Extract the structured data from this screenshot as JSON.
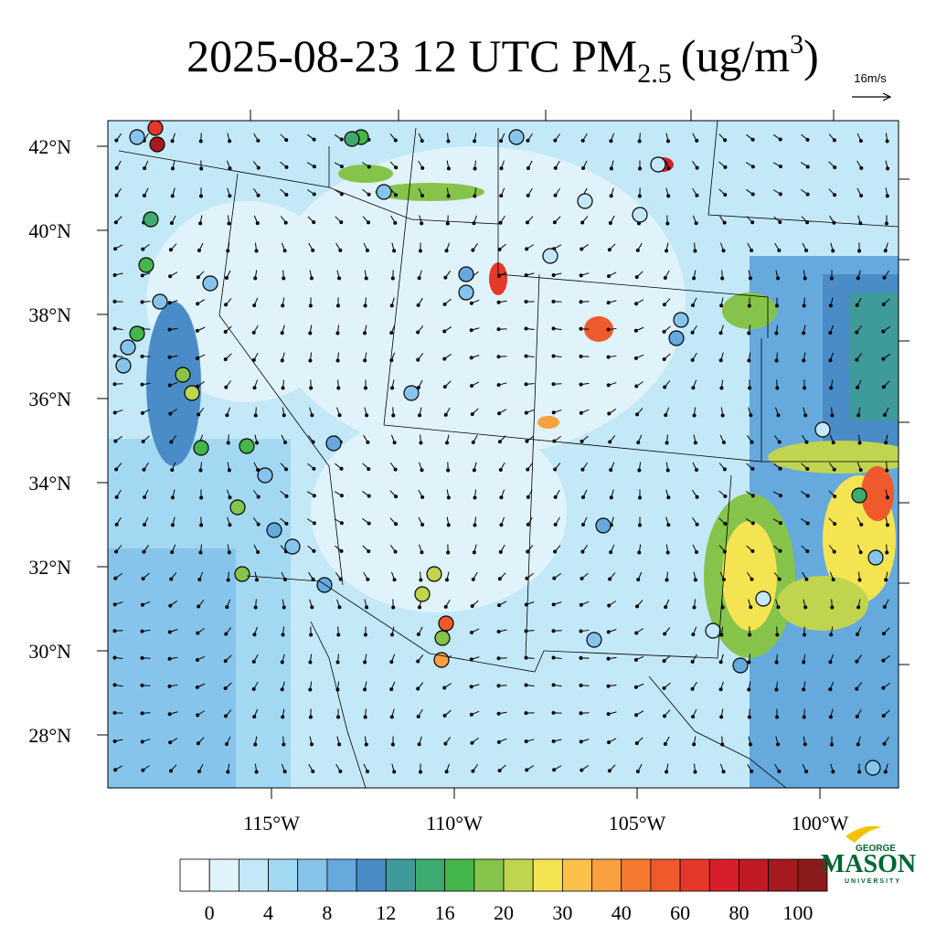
{
  "title": {
    "main": "2025-08-23 12 UTC PM",
    "sub": "2.5",
    "unit_open": "(ug/m",
    "sup": "3",
    "unit_close": ")"
  },
  "wind_reference": "16m/s",
  "latitude_labels": [
    "42°N",
    "40°N",
    "38°N",
    "36°N",
    "34°N",
    "32°N",
    "30°N",
    "28°N"
  ],
  "longitude_labels": [
    "115°W",
    "110°W",
    "105°W",
    "100°W"
  ],
  "colorbar": {
    "labels": [
      0,
      4,
      8,
      12,
      16,
      20,
      30,
      40,
      60,
      80,
      100
    ],
    "colors": [
      "#ffffff",
      "#e0f3fb",
      "#c3e8f7",
      "#a3d8f2",
      "#86c4eb",
      "#65a9dd",
      "#4a8cc8",
      "#3f9a9a",
      "#3daa6e",
      "#45b649",
      "#86c34a",
      "#c0d450",
      "#f5e452",
      "#fbc04a",
      "#f9a040",
      "#f5792f",
      "#ef5a2c",
      "#e5382a",
      "#d71f2a",
      "#c01a25",
      "#a61a20",
      "#8b1a1a"
    ]
  },
  "logo": {
    "top": "GEORGE",
    "main": "MASON",
    "bottom": "UNIVERSITY"
  }
}
